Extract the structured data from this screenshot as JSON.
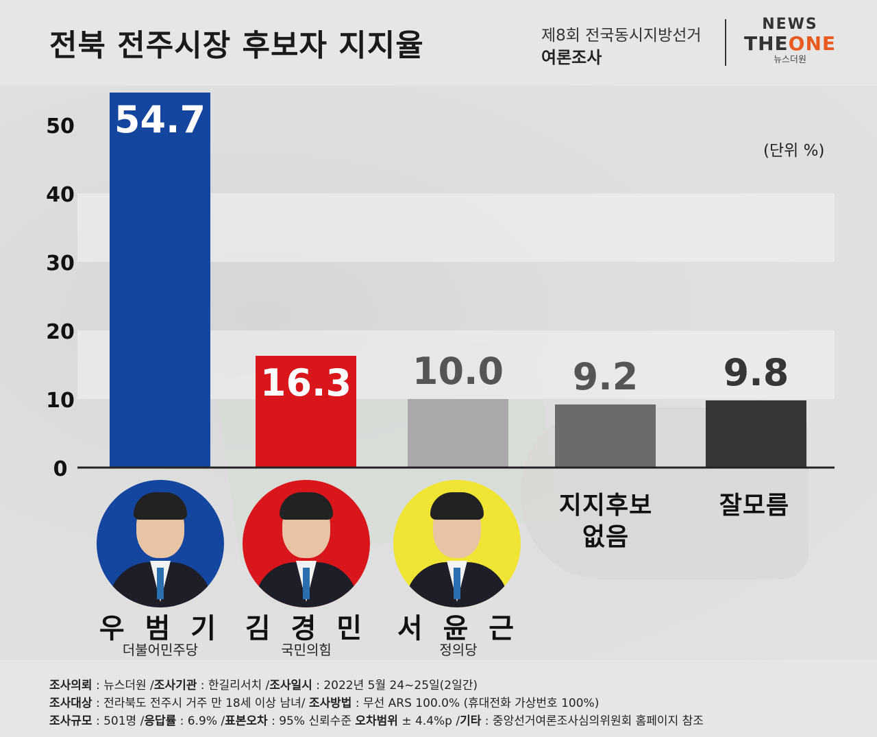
{
  "header": {
    "title": "전북 전주시장 후보자 지지율",
    "subtitle_line1": "제8회 전국동시지방선거",
    "subtitle_line2": "여론조사",
    "logo_news": "NEWS",
    "logo_the": "THE",
    "logo_one": "ONE",
    "logo_korean": "뉴스더원"
  },
  "unit_label": "(단위 %)",
  "chart_data": {
    "type": "bar",
    "ylim": [
      0,
      55
    ],
    "yticks": [
      0,
      10,
      20,
      30,
      40,
      50
    ],
    "grid": "horizontal bands",
    "categories": [
      "우범기",
      "김경민",
      "서윤근",
      "지지후보 없음",
      "잘모름"
    ],
    "values": [
      54.7,
      16.3,
      10.0,
      9.2,
      9.8
    ],
    "value_labels": [
      "54.7",
      "16.3",
      "10.0",
      "9.2",
      "9.8"
    ],
    "colors": [
      "#1446a0",
      "#d9161c",
      "#a9a9a9",
      "#6b6b6b",
      "#363636"
    ],
    "label_colors": [
      "#ffffff",
      "#ffffff",
      "#555555",
      "#555555",
      "#363636"
    ]
  },
  "candidates": [
    {
      "name": "우 범 기",
      "party": "더불어민주당",
      "color": "#1446a0"
    },
    {
      "name": "김 경 민",
      "party": "국민의힘",
      "color": "#d9161c"
    },
    {
      "name": "서 윤 근",
      "party": "정의당",
      "color": "#f0e434"
    }
  ],
  "others": {
    "no_candidate_line1": "지지후보",
    "no_candidate_line2": "없음",
    "dont_know": "잘모름"
  },
  "footer": {
    "line1": [
      {
        "k": "조사의뢰",
        "v": " : 뉴스더원 /"
      },
      {
        "k": "조사기관",
        "v": " : 한길리서치 /"
      },
      {
        "k": "조사일시",
        "v": " : 2022년 5월 24~25일(2일간)"
      }
    ],
    "line2": [
      {
        "k": "조사대상",
        "v": " : 전라북도 전주시 거주 만 18세 이상 남녀/ "
      },
      {
        "k": "조사방법",
        "v": " : 무선 ARS 100.0% (휴대전화 가상번호 100%)"
      }
    ],
    "line3": [
      {
        "k": "조사규모",
        "v": " : 501명 /"
      },
      {
        "k": "응답률",
        "v": " : 6.9% /"
      },
      {
        "k": "표본오차",
        "v": " : 95% 신뢰수준 "
      },
      {
        "k": "오차범위",
        "v": " ± 4.4%p /"
      },
      {
        "k": "기타",
        "v": " : 중앙선거여론조사심의위원회 홈페이지 참조"
      }
    ]
  }
}
